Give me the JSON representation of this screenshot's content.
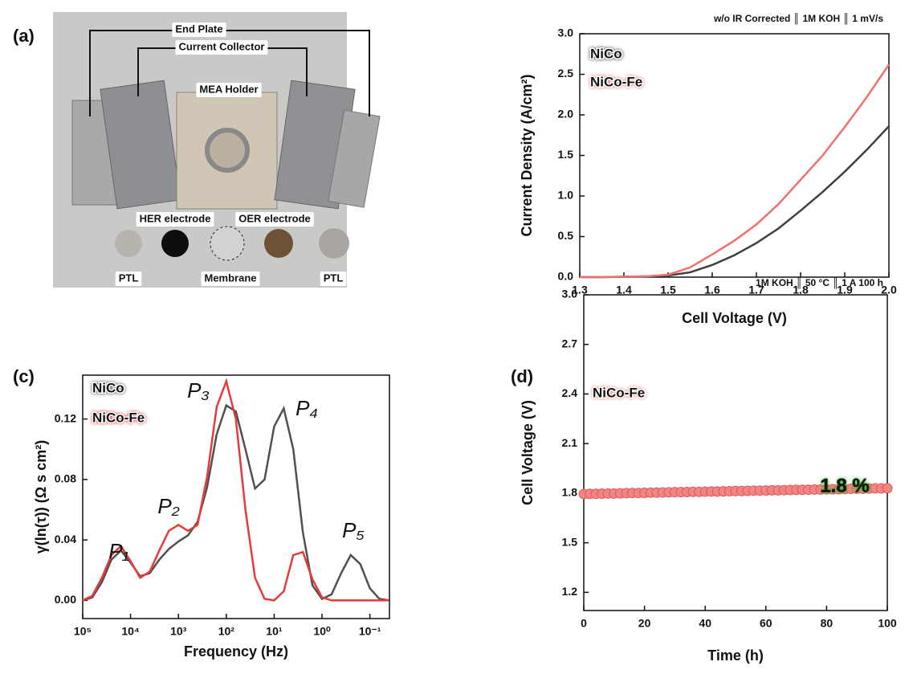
{
  "photo": {
    "panel_label": "(a)",
    "labels": [
      "End Plate",
      "Current Collector",
      "MEA Holder",
      "HER electrode",
      "OER electrode",
      "PTL",
      "Membrane",
      "PTL"
    ]
  },
  "chart_data": [
    {
      "type": "line",
      "title": "w/o IR Corrected ║ 1M KOH ║ 1 mV/s",
      "x_label": "Cell Voltage (V)",
      "y_label": "Current Density (A/cm²)",
      "x": [
        1.3,
        1.35,
        1.4,
        1.45,
        1.5,
        1.55,
        1.6,
        1.65,
        1.7,
        1.75,
        1.8,
        1.85,
        1.9,
        1.95,
        2.0
      ],
      "series": [
        {
          "name": "NiCo",
          "color": "#404040",
          "values": [
            0,
            0,
            0.005,
            0.01,
            0.02,
            0.06,
            0.15,
            0.27,
            0.42,
            0.6,
            0.82,
            1.05,
            1.3,
            1.57,
            1.86
          ]
        },
        {
          "name": "NiCo-Fe",
          "color": "#f07070",
          "values": [
            0,
            0,
            0.005,
            0.01,
            0.03,
            0.12,
            0.28,
            0.45,
            0.65,
            0.9,
            1.2,
            1.5,
            1.85,
            2.22,
            2.62
          ]
        }
      ],
      "xlim": [
        1.3,
        2.0
      ],
      "xticks": [
        1.3,
        1.4,
        1.5,
        1.6,
        1.7,
        1.8,
        1.9,
        {
          "value": 2,
          "label": "2.0"
        }
      ],
      "ylim": [
        0,
        3
      ],
      "yticks": [
        {
          "value": 0,
          "label": "0.0"
        },
        0.5,
        {
          "value": 1,
          "label": "1.0"
        },
        1.5,
        {
          "value": 2,
          "label": "2.0"
        },
        2.5,
        {
          "value": 3,
          "label": "3.0"
        }
      ]
    },
    {
      "type": "line",
      "panel_label": "(c)",
      "x_label": "Frequency (Hz)",
      "y_label": "γ(ln(τ)) (Ω s cm²)",
      "log_x": true,
      "x": [
        100000,
        63095.7,
        39810.7,
        25118.9,
        15848.9,
        10000,
        6309.57,
        3981.07,
        2511.89,
        1584.89,
        1000,
        630.957,
        398.107,
        251.189,
        158.489,
        100,
        63.0957,
        39.8107,
        25.1189,
        15.8489,
        10,
        6.30957,
        3.98107,
        2.51189,
        1.58489,
        1,
        0.630957,
        0.398107,
        0.251189,
        0.158489,
        0.1,
        0.0630957,
        0.0398107
      ],
      "series": [
        {
          "name": "NiCo",
          "color": "#505050",
          "values": [
            0,
            0.002,
            0.012,
            0.027,
            0.033,
            0.025,
            0.016,
            0.018,
            0.027,
            0.034,
            0.039,
            0.043,
            0.052,
            0.075,
            0.11,
            0.129,
            0.125,
            0.1,
            0.074,
            0.08,
            0.115,
            0.127,
            0.1,
            0.045,
            0.01,
            0.001,
            0.004,
            0.018,
            0.03,
            0.024,
            0.008,
            0.001,
            0
          ]
        },
        {
          "name": "NiCo-Fe",
          "color": "#e83a3a",
          "values": [
            0,
            0.003,
            0.015,
            0.03,
            0.036,
            0.026,
            0.015,
            0.019,
            0.033,
            0.046,
            0.05,
            0.046,
            0.05,
            0.082,
            0.128,
            0.145,
            0.12,
            0.06,
            0.015,
            0.001,
            0,
            0.006,
            0.03,
            0.032,
            0.014,
            0.002,
            0,
            0,
            0,
            0,
            0,
            0,
            0
          ]
        }
      ],
      "annotations": [
        "P₁",
        "P₂",
        "P₃",
        "P₄",
        "P₅"
      ],
      "xlim": [
        100000,
        0.039
      ],
      "xticks": [
        {
          "value": 100000,
          "label": "10⁵"
        },
        {
          "value": 10000,
          "label": "10⁴"
        },
        {
          "value": 1000,
          "label": "10³"
        },
        {
          "value": 100,
          "label": "10²"
        },
        {
          "value": 10,
          "label": "10¹"
        },
        {
          "value": 1,
          "label": "10⁰"
        },
        {
          "value": 0.1,
          "label": "10⁻¹"
        }
      ],
      "ylim": [
        -0.012,
        0.149
      ],
      "yticks": [
        {
          "value": 0,
          "label": "0.00"
        },
        0.04,
        0.08,
        0.12
      ]
    },
    {
      "type": "scatter",
      "panel_label": "(d)",
      "title": "1M KOH ║ 50 °C ║ 1 A 100 h",
      "x_label": "Time (h)",
      "y_label": "Cell Voltage (V)",
      "annotations": [
        "1.8 %"
      ],
      "annotation_color": "#3cb82e",
      "x": [
        0,
        2,
        4,
        6,
        8,
        10,
        12,
        14,
        16,
        18,
        20,
        22,
        24,
        26,
        28,
        30,
        32,
        34,
        36,
        38,
        40,
        42,
        44,
        46,
        48,
        50,
        52,
        54,
        56,
        58,
        60,
        62,
        64,
        66,
        68,
        70,
        72,
        74,
        76,
        78,
        80,
        82,
        84,
        86,
        88,
        90,
        92,
        94,
        96,
        98,
        100
      ],
      "series": [
        {
          "name": "NiCo-Fe",
          "color": "#f28484",
          "values": [
            1.795,
            1.796,
            1.796,
            1.797,
            1.798,
            1.798,
            1.799,
            1.8,
            1.801,
            1.801,
            1.802,
            1.803,
            1.803,
            1.804,
            1.805,
            1.806,
            1.806,
            1.807,
            1.808,
            1.808,
            1.809,
            1.81,
            1.81,
            1.811,
            1.812,
            1.813,
            1.813,
            1.814,
            1.815,
            1.815,
            1.816,
            1.817,
            1.817,
            1.818,
            1.819,
            1.82,
            1.82,
            1.821,
            1.822,
            1.822,
            1.823,
            1.824,
            1.824,
            1.825,
            1.826,
            1.827,
            1.827,
            1.828,
            1.829,
            1.829,
            1.83
          ]
        }
      ],
      "xlim": [
        0,
        100
      ],
      "xticks": [
        0,
        20,
        40,
        60,
        80,
        100
      ],
      "ylim": [
        1.09,
        3.0
      ],
      "yticks": [
        1.2,
        1.5,
        1.8,
        2.1,
        2.4,
        2.7,
        {
          "value": 3,
          "label": "3.0"
        }
      ]
    }
  ]
}
